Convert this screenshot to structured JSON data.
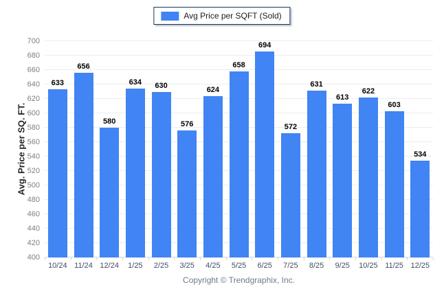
{
  "legend": {
    "label": "Avg Price per SQFT (Sold)"
  },
  "footer": {
    "copyright": "Copyright © Trendgraphix, Inc."
  },
  "colors": {
    "bar": "#4184F3",
    "grid": "#ececec",
    "axis": "#d4d4d4",
    "y_tick_text": "#7f7f7f",
    "x_tick_text": "#3F4D63",
    "value_text": "#000000",
    "legend_border": "#17375E",
    "copyright_text": "#6E7B8A"
  },
  "chart_data": {
    "type": "bar",
    "title": "",
    "series_name": "Avg Price per SQFT (Sold)",
    "categories": [
      "10/24",
      "11/24",
      "12/24",
      "1/25",
      "2/25",
      "3/25",
      "4/25",
      "5/25",
      "6/25",
      "7/25",
      "8/25",
      "9/25",
      "10/25",
      "11/25",
      "12/25"
    ],
    "values": [
      633,
      656,
      580,
      634,
      630,
      576,
      624,
      658,
      694,
      572,
      631,
      613,
      622,
      603,
      534
    ],
    "value_labels": true,
    "xlabel": "",
    "ylabel": "Avg. Price per SQ. FT.",
    "ylim": [
      400,
      700
    ],
    "ytick_step": 20,
    "grid": "horizontal",
    "legend_position": "top-center",
    "bar_color": "#4184F3"
  }
}
